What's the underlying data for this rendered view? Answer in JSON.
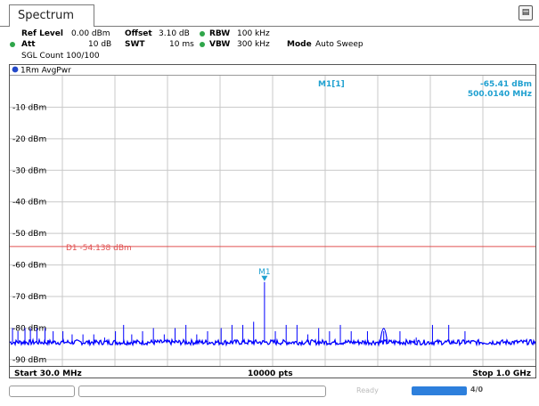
{
  "tab_label": "Spectrum",
  "settings": {
    "ref_level_label": "Ref Level",
    "ref_level_value": "0.00 dBm",
    "offset_label": "Offset",
    "offset_value": "3.10 dB",
    "rbw_label": "RBW",
    "rbw_value": "100 kHz",
    "att_label": "Att",
    "att_value": "10 dB",
    "swt_label": "SWT",
    "swt_value": "10 ms",
    "vbw_label": "VBW",
    "vbw_value": "300 kHz",
    "mode_label": "Mode",
    "mode_value": "Auto Sweep",
    "sgl_count": "SGL Count 100/100"
  },
  "trace_label": "1Rm AvgPwr",
  "marker": {
    "name": "M1[1]",
    "level": "-65.41 dBm",
    "freq": "500.0140 MHz",
    "tag": "M1",
    "x_mhz": 500.014,
    "y_dbm": -65.41
  },
  "display_line": {
    "label": "D1  -54.138 dBm",
    "value": -54.138
  },
  "footer": {
    "start": "Start 30.0 MHz",
    "points": "10000 pts",
    "stop": "Stop 1.0 GHz"
  },
  "status_text": "Ready",
  "progress_text": "4/0",
  "colors": {
    "trace": "#0000ff",
    "marker": "#1fa0d0",
    "display_line": "#e05050",
    "grid": "#c8c8c8",
    "green": "#2fa64a"
  },
  "chart_data": {
    "type": "line",
    "x_unit": "MHz",
    "xlim": [
      30,
      1000
    ],
    "ylim": [
      -92,
      0
    ],
    "ylabels": [
      "-10 dBm",
      "-20 dBm",
      "-30 dBm",
      "-40 dBm",
      "-50 dBm",
      "-60 dBm",
      "-70 dBm",
      "-80 dBm",
      "-90 dBm"
    ],
    "yticks": [
      -10,
      -20,
      -30,
      -40,
      -50,
      -60,
      -70,
      -80,
      -90
    ],
    "noise_floor_dbm": -84.5,
    "spurs": [
      {
        "x": 35,
        "y": -80
      },
      {
        "x": 45,
        "y": -81
      },
      {
        "x": 58,
        "y": -80
      },
      {
        "x": 68,
        "y": -80
      },
      {
        "x": 80,
        "y": -80
      },
      {
        "x": 95,
        "y": -80
      },
      {
        "x": 110,
        "y": -81
      },
      {
        "x": 128,
        "y": -81
      },
      {
        "x": 145,
        "y": -82
      },
      {
        "x": 165,
        "y": -82
      },
      {
        "x": 185,
        "y": -82
      },
      {
        "x": 205,
        "y": -83
      },
      {
        "x": 225,
        "y": -81
      },
      {
        "x": 240,
        "y": -79
      },
      {
        "x": 255,
        "y": -82
      },
      {
        "x": 275,
        "y": -81
      },
      {
        "x": 295,
        "y": -80
      },
      {
        "x": 315,
        "y": -82
      },
      {
        "x": 335,
        "y": -80
      },
      {
        "x": 355,
        "y": -79
      },
      {
        "x": 375,
        "y": -82
      },
      {
        "x": 395,
        "y": -81
      },
      {
        "x": 420,
        "y": -80
      },
      {
        "x": 440,
        "y": -79
      },
      {
        "x": 460,
        "y": -79
      },
      {
        "x": 480,
        "y": -78
      },
      {
        "x": 500.014,
        "y": -65.41
      },
      {
        "x": 520,
        "y": -81
      },
      {
        "x": 540,
        "y": -79
      },
      {
        "x": 560,
        "y": -79
      },
      {
        "x": 580,
        "y": -82
      },
      {
        "x": 600,
        "y": -80
      },
      {
        "x": 620,
        "y": -81
      },
      {
        "x": 640,
        "y": -79
      },
      {
        "x": 660,
        "y": -81
      },
      {
        "x": 690,
        "y": -81
      },
      {
        "x": 720,
        "y": -81
      },
      {
        "x": 750,
        "y": -81
      },
      {
        "x": 780,
        "y": -83
      },
      {
        "x": 810,
        "y": -79
      },
      {
        "x": 840,
        "y": -79
      },
      {
        "x": 870,
        "y": -81
      }
    ],
    "bump": {
      "x": 720,
      "y": -78
    }
  }
}
